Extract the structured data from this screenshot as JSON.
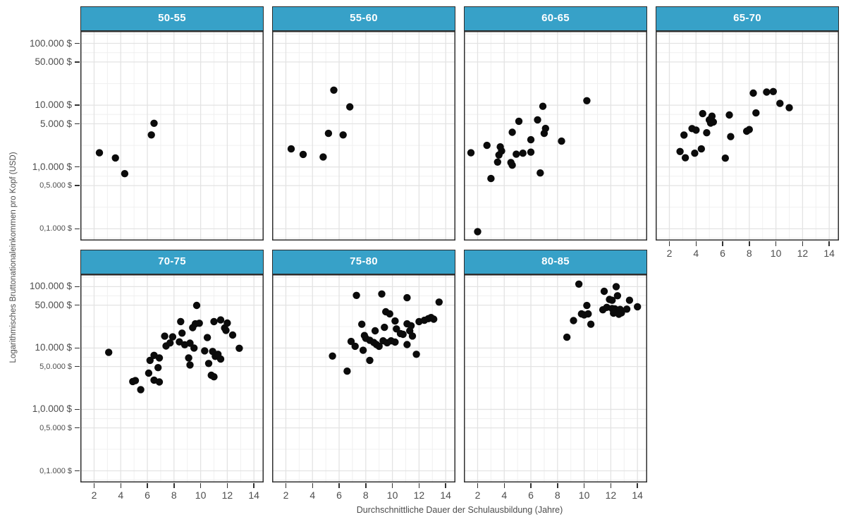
{
  "chart_data": {
    "type": "scatter",
    "layout": "facet_grid_2rows_4cols",
    "title": "",
    "xlabel": "Durchschnittliche Dauer der Schulausbildung (Jahre)",
    "ylabel": "Logarithmisches Bruttonationaleinkommen pro Kopf (USD)",
    "x_ticks": [
      2,
      4,
      6,
      8,
      10,
      12,
      14
    ],
    "x_minor": [
      1,
      3,
      5,
      7,
      9,
      11,
      13
    ],
    "x_range": [
      0.97,
      14.73
    ],
    "y_scale": "log10",
    "y_range_log10": [
      1.81,
      5.2
    ],
    "y_tick_values": [
      100000,
      50000,
      10000,
      5000,
      1000,
      500,
      100
    ],
    "y_tick_labels_top_row": [
      "100.000 $",
      "50.000 $",
      "10.000 $",
      "5.000 $",
      "1,0.000 $",
      "0,5.000 $",
      "0,1.000 $"
    ],
    "y_tick_labels_bottom_row": [
      "100.000 $",
      "50.000 $",
      "10.000 $",
      "5,0.000 $",
      "1,0.000 $",
      "0,5.000 $",
      "0,1.000 $"
    ],
    "y_tick_small_top_row": [
      false,
      false,
      false,
      false,
      false,
      true,
      true
    ],
    "y_tick_small_bottom_row": [
      false,
      false,
      false,
      true,
      false,
      true,
      true
    ],
    "grid": "major_and_minor",
    "y_minor_log10": [
      5.15,
      4.85,
      4.35,
      3.85,
      3.35,
      2.85,
      2.35,
      1.85
    ],
    "facets": [
      {
        "label": "50-55",
        "row": 0,
        "col": 0,
        "points": [
          [
            2.4,
            1700
          ],
          [
            3.6,
            1400
          ],
          [
            4.3,
            780
          ],
          [
            6.3,
            3300
          ],
          [
            6.5,
            5100
          ]
        ]
      },
      {
        "label": "55-60",
        "row": 0,
        "col": 1,
        "points": [
          [
            2.4,
            1960
          ],
          [
            3.3,
            1600
          ],
          [
            4.8,
            1450
          ],
          [
            5.2,
            3500
          ],
          [
            5.6,
            17500
          ],
          [
            6.3,
            3300
          ],
          [
            6.8,
            9400
          ]
        ]
      },
      {
        "label": "60-65",
        "row": 0,
        "col": 2,
        "points": [
          [
            1.5,
            1700
          ],
          [
            2.0,
            90
          ],
          [
            2.7,
            2240
          ],
          [
            3.0,
            650
          ],
          [
            3.5,
            1200
          ],
          [
            3.6,
            1560
          ],
          [
            3.7,
            2120
          ],
          [
            3.8,
            1820
          ],
          [
            4.5,
            1180
          ],
          [
            4.6,
            3650
          ],
          [
            4.6,
            1070
          ],
          [
            4.9,
            1610
          ],
          [
            5.1,
            5500
          ],
          [
            5.4,
            1670
          ],
          [
            6.0,
            2760
          ],
          [
            6.0,
            1740
          ],
          [
            6.5,
            5800
          ],
          [
            6.7,
            800
          ],
          [
            6.9,
            9600
          ],
          [
            7.0,
            3500
          ],
          [
            7.1,
            4200
          ],
          [
            8.3,
            2620
          ],
          [
            10.2,
            11800
          ]
        ]
      },
      {
        "label": "65-70",
        "row": 0,
        "col": 3,
        "points": [
          [
            2.8,
            1780
          ],
          [
            3.1,
            3290
          ],
          [
            3.2,
            1410
          ],
          [
            3.7,
            4180
          ],
          [
            3.9,
            1670
          ],
          [
            4.0,
            3960
          ],
          [
            4.4,
            1960
          ],
          [
            4.5,
            7300
          ],
          [
            4.8,
            3580
          ],
          [
            5.0,
            5780
          ],
          [
            5.1,
            5130
          ],
          [
            5.2,
            6640
          ],
          [
            5.3,
            5350
          ],
          [
            6.2,
            1390
          ],
          [
            6.5,
            6950
          ],
          [
            6.6,
            3100
          ],
          [
            7.8,
            3790
          ],
          [
            8.0,
            4030
          ],
          [
            8.3,
            15700
          ],
          [
            8.5,
            7500
          ],
          [
            9.3,
            16300
          ],
          [
            9.8,
            16600
          ],
          [
            10.3,
            10700
          ],
          [
            11.0,
            9100
          ]
        ]
      },
      {
        "label": "70-75",
        "row": 1,
        "col": 0,
        "points": [
          [
            3.1,
            8500
          ],
          [
            4.9,
            2850
          ],
          [
            5.1,
            2950
          ],
          [
            5.5,
            2100
          ],
          [
            6.1,
            3900
          ],
          [
            6.2,
            6300
          ],
          [
            6.5,
            7600
          ],
          [
            6.5,
            3000
          ],
          [
            6.8,
            4800
          ],
          [
            6.9,
            6900
          ],
          [
            6.9,
            2800
          ],
          [
            7.3,
            15600
          ],
          [
            7.4,
            10800
          ],
          [
            7.7,
            12100
          ],
          [
            7.9,
            15200
          ],
          [
            8.4,
            12600
          ],
          [
            8.5,
            27000
          ],
          [
            8.6,
            17500
          ],
          [
            8.8,
            11300
          ],
          [
            9.1,
            6900
          ],
          [
            9.2,
            12000
          ],
          [
            9.2,
            5300
          ],
          [
            9.4,
            21500
          ],
          [
            9.5,
            10000
          ],
          [
            9.6,
            24800
          ],
          [
            9.7,
            49500
          ],
          [
            9.9,
            25300
          ],
          [
            10.3,
            9000
          ],
          [
            10.5,
            14800
          ],
          [
            10.6,
            5600
          ],
          [
            10.8,
            3600
          ],
          [
            10.9,
            8800
          ],
          [
            11.0,
            27000
          ],
          [
            11.0,
            3400
          ],
          [
            11.1,
            7300
          ],
          [
            11.3,
            7900
          ],
          [
            11.5,
            28700
          ],
          [
            11.5,
            6600
          ],
          [
            11.8,
            21200
          ],
          [
            11.9,
            19400
          ],
          [
            12.0,
            25500
          ],
          [
            12.4,
            16300
          ],
          [
            12.9,
            9900
          ]
        ]
      },
      {
        "label": "75-80",
        "row": 1,
        "col": 1,
        "points": [
          [
            5.5,
            7400
          ],
          [
            6.6,
            4200
          ],
          [
            6.9,
            12800
          ],
          [
            7.2,
            10700
          ],
          [
            7.3,
            72000
          ],
          [
            7.7,
            24400
          ],
          [
            7.8,
            9200
          ],
          [
            7.9,
            16000
          ],
          [
            8.0,
            14400
          ],
          [
            8.3,
            13400
          ],
          [
            8.3,
            6300
          ],
          [
            8.6,
            12300
          ],
          [
            8.7,
            19100
          ],
          [
            8.8,
            11400
          ],
          [
            9.0,
            10700
          ],
          [
            9.2,
            76000
          ],
          [
            9.3,
            13100
          ],
          [
            9.4,
            21700
          ],
          [
            9.5,
            39000
          ],
          [
            9.6,
            12200
          ],
          [
            9.8,
            36000
          ],
          [
            9.9,
            13100
          ],
          [
            10.2,
            12500
          ],
          [
            10.2,
            27600
          ],
          [
            10.3,
            20500
          ],
          [
            10.6,
            17200
          ],
          [
            10.8,
            16700
          ],
          [
            11.1,
            66000
          ],
          [
            11.1,
            24800
          ],
          [
            11.1,
            11400
          ],
          [
            11.3,
            19100
          ],
          [
            11.4,
            23100
          ],
          [
            11.5,
            15700
          ],
          [
            11.8,
            7900
          ],
          [
            12.0,
            27000
          ],
          [
            12.4,
            28300
          ],
          [
            12.7,
            30100
          ],
          [
            12.9,
            31400
          ],
          [
            13.1,
            29500
          ],
          [
            13.5,
            56000
          ]
        ]
      },
      {
        "label": "80-85",
        "row": 1,
        "col": 2,
        "points": [
          [
            8.7,
            15000
          ],
          [
            9.2,
            28000
          ],
          [
            9.6,
            110000
          ],
          [
            9.8,
            36000
          ],
          [
            10.0,
            34700
          ],
          [
            10.2,
            49400
          ],
          [
            10.3,
            36000
          ],
          [
            10.5,
            24400
          ],
          [
            11.4,
            42000
          ],
          [
            11.5,
            84000
          ],
          [
            11.7,
            46000
          ],
          [
            11.9,
            62000
          ],
          [
            12.1,
            60000
          ],
          [
            12.1,
            44000
          ],
          [
            12.2,
            41000
          ],
          [
            12.2,
            37000
          ],
          [
            12.3,
            43500
          ],
          [
            12.3,
            39000
          ],
          [
            12.4,
            100000
          ],
          [
            12.4,
            41500
          ],
          [
            12.5,
            71000
          ],
          [
            12.5,
            38000
          ],
          [
            12.6,
            40000
          ],
          [
            12.6,
            35500
          ],
          [
            12.7,
            42500
          ],
          [
            12.8,
            37500
          ],
          [
            13.2,
            43000
          ],
          [
            13.4,
            60000
          ],
          [
            14.0,
            47000
          ]
        ]
      }
    ]
  },
  "style": {
    "strip_fill": "#37a1c8",
    "strip_text_color": "#ffffff",
    "strip_border": "#2b2b2b",
    "panel_border": "#2f2f2f",
    "panel_background": "#ffffff",
    "grid_major": "#e3e3e3",
    "grid_minor": "#f0f0f0",
    "point_color": "#0b0b0b",
    "tick_text_color": "#4d4d4d",
    "tick_mark_color": "#333333",
    "page_background": "#ffffff"
  }
}
